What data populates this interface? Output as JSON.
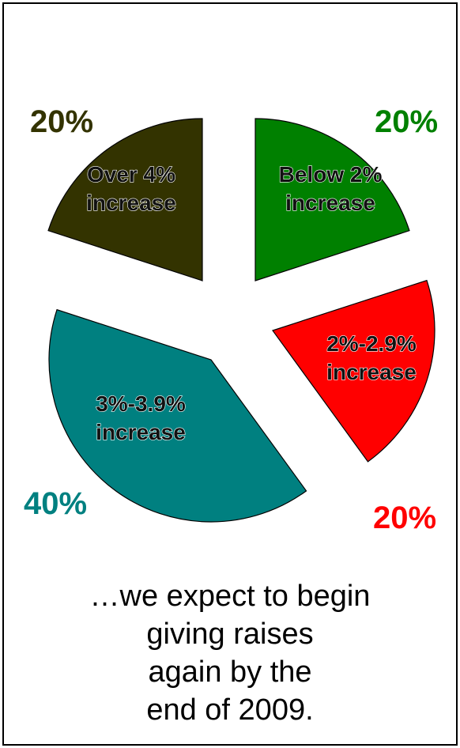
{
  "chart_data": {
    "type": "pie",
    "slices": [
      {
        "label_line1": "Below 2%",
        "label_line2": "increase",
        "value": 20,
        "value_text": "20%",
        "color": "#008000",
        "pct_color": "#008000"
      },
      {
        "label_line1": "2%-2.9%",
        "label_line2": "increase",
        "value": 20,
        "value_text": "20%",
        "color": "#ff0000",
        "pct_color": "#ff0000"
      },
      {
        "label_line1": "3%-3.9%",
        "label_line2": "increase",
        "value": 40,
        "value_text": "40%",
        "color": "#008080",
        "pct_color": "#008080"
      },
      {
        "label_line1": "Over 4%",
        "label_line2": "increase",
        "value": 20,
        "value_text": "20%",
        "color": "#333300",
        "pct_color": "#333300"
      }
    ],
    "start_angle_deg": 0,
    "direction": "clockwise",
    "exploded": true
  },
  "caption": {
    "line1": "…we expect to begin",
    "line2": "giving raises",
    "line3": "again by the",
    "line4": "end of 2009."
  }
}
